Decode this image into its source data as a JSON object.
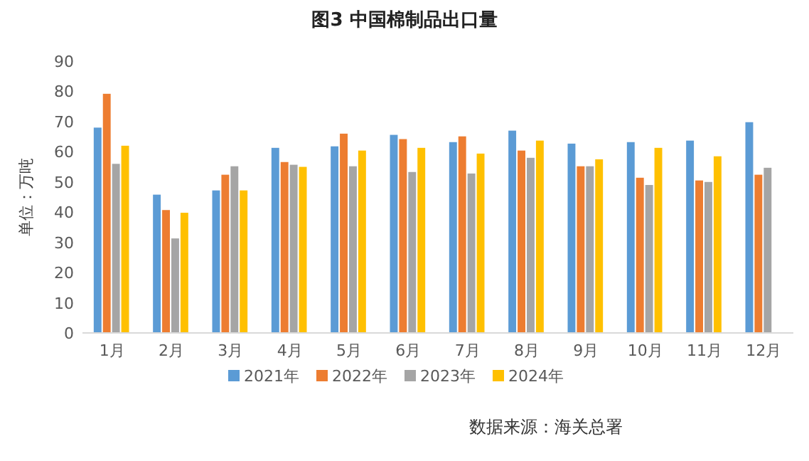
{
  "chart_data": {
    "type": "bar",
    "title": "图3  中国棉制品出口量",
    "ylabel": "单位：万吨",
    "categories": [
      "1月",
      "2月",
      "3月",
      "4月",
      "5月",
      "6月",
      "7月",
      "8月",
      "9月",
      "10月",
      "11月",
      "12月"
    ],
    "series": [
      {
        "name": "2021年",
        "color": "#5b9bd5",
        "values": [
          68,
          45.8,
          47.2,
          61.3,
          61.8,
          65.6,
          63.2,
          67,
          62.7,
          63.2,
          63.7,
          69.8
        ]
      },
      {
        "name": "2022年",
        "color": "#ed7d31",
        "values": [
          79.2,
          40.7,
          52.4,
          56.6,
          66,
          64.2,
          65.1,
          60.4,
          55.2,
          51.4,
          50.5,
          52.4
        ]
      },
      {
        "name": "2023年",
        "color": "#a5a5a5",
        "values": [
          56,
          31.3,
          55.2,
          55.7,
          55.2,
          53.3,
          52.8,
          58,
          55.2,
          49,
          50,
          54.7
        ]
      },
      {
        "name": "2024年",
        "color": "#ffc000",
        "values": [
          62,
          39.8,
          47.2,
          55,
          60.4,
          61.3,
          59.4,
          63.7,
          57.5,
          61.3,
          58.5,
          null
        ]
      }
    ],
    "ylim": [
      0,
      90
    ],
    "yticks": [
      0,
      10,
      20,
      30,
      40,
      50,
      60,
      70,
      80,
      90
    ],
    "legend": "bottom",
    "annotations": [
      "数据来源：海关总署"
    ]
  }
}
